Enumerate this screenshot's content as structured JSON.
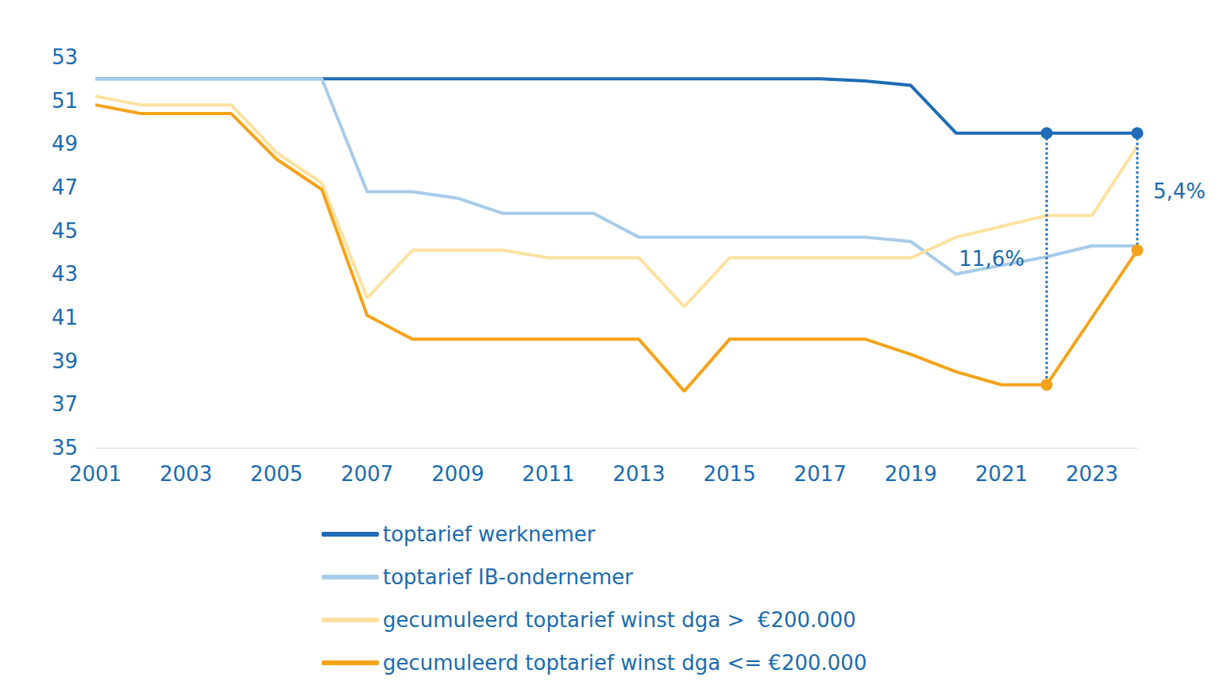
{
  "chart_data": {
    "type": "line",
    "x": [
      2001,
      2002,
      2003,
      2004,
      2005,
      2006,
      2007,
      2008,
      2009,
      2010,
      2011,
      2012,
      2013,
      2014,
      2015,
      2016,
      2017,
      2018,
      2019,
      2020,
      2021,
      2022,
      2023,
      2024
    ],
    "xlim": [
      2001,
      2024
    ],
    "xticks": [
      2001,
      2003,
      2005,
      2007,
      2009,
      2011,
      2013,
      2015,
      2017,
      2019,
      2021,
      2023
    ],
    "ylim": [
      35,
      53
    ],
    "yticks": [
      35,
      37,
      39,
      41,
      43,
      45,
      47,
      49,
      51,
      53
    ],
    "grid": false,
    "legend": "bottom",
    "series": [
      {
        "name": "toptarief werknemer",
        "color": "#1f6bb5",
        "values": [
          52,
          52,
          52,
          52,
          52,
          52,
          52,
          52,
          52,
          52,
          52,
          52,
          52,
          52,
          52,
          52,
          52,
          51.9,
          51.7,
          49.5,
          49.5,
          49.5,
          49.5,
          49.5
        ]
      },
      {
        "name": "toptarief IB-ondernemer",
        "color": "#a7cbea",
        "values": [
          52,
          52,
          52,
          52,
          52,
          52,
          46.8,
          46.8,
          46.5,
          45.8,
          45.8,
          45.8,
          44.7,
          44.7,
          44.7,
          44.7,
          44.7,
          44.7,
          44.5,
          43.0,
          43.4,
          43.8,
          44.3,
          44.3
        ]
      },
      {
        "name": "gecumuleerd toptarief winst dga >  €200.000",
        "color": "#fde1a0",
        "values": [
          51.2,
          50.8,
          50.8,
          50.8,
          48.6,
          47.2,
          41.9,
          44.1,
          44.1,
          44.1,
          43.75,
          43.75,
          43.75,
          41.5,
          43.75,
          43.75,
          43.75,
          43.75,
          43.75,
          44.7,
          45.2,
          45.7,
          45.7,
          48.9
        ]
      },
      {
        "name": "gecumuleerd toptarief winst dga <= €200.000",
        "color": "#f5a31a",
        "values": [
          50.8,
          50.4,
          50.4,
          50.4,
          48.3,
          46.9,
          41.1,
          40.0,
          40.0,
          40.0,
          40.0,
          40.0,
          40.0,
          37.6,
          40.0,
          40.0,
          40.0,
          40.0,
          39.3,
          38.5,
          37.9,
          37.9,
          41.0,
          44.1
        ]
      }
    ],
    "annotations": [
      {
        "text": "11,6%",
        "x": 2022,
        "y_from": 49.5,
        "y_to": 37.9
      },
      {
        "text": "5,4%",
        "x": 2024,
        "y_from": 49.5,
        "y_to": 44.1
      }
    ]
  }
}
